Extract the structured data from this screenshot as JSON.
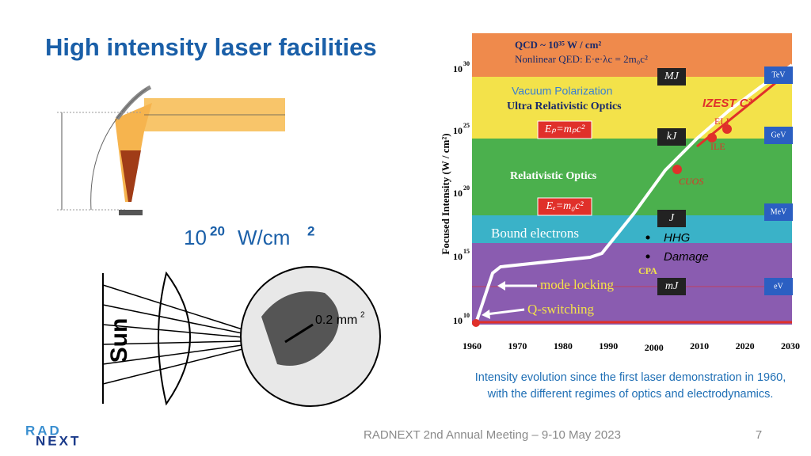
{
  "header": {
    "title": "High intensity laser facilities"
  },
  "left": {
    "intensity_base": "10",
    "intensity_exponent": "20",
    "intensity_unit": "W/cm",
    "intensity_unit_exponent": "2",
    "sun_label": "Sun",
    "area_label": "0.2 mm",
    "area_exponent": "2"
  },
  "figure": {
    "qcd": "QCD ~ 10³⁵ W / cm²",
    "qed": "Nonlinear QED: E·e·λc = 2m₀c²",
    "vacuum": "Vacuum Polarization",
    "ultra": "Ultra Relativistic Optics",
    "izest": "IZEST   C³",
    "eli": "ELI",
    "ile": "ILE",
    "cuos": "CUOS",
    "relativistic": "Relativistic Optics",
    "ep": "Eₚ=mₚc²",
    "ee": "Eₑ=m₀c²",
    "bound": "Bound electrons",
    "bullets": [
      "HHG",
      "Damage"
    ],
    "cpa": "CPA",
    "mode_locking": "mode locking",
    "q_switching": "Q-switching",
    "energies": [
      "MJ",
      "kJ",
      "J",
      "mJ"
    ],
    "particle_energies": [
      "TeV",
      "GeV",
      "MeV",
      "eV"
    ],
    "y_axis_label": "Focused Intensity (W / cm²)",
    "yticks": [
      {
        "base": "10",
        "exponent": "30"
      },
      {
        "base": "10",
        "exponent": "25"
      },
      {
        "base": "10",
        "exponent": "20"
      },
      {
        "base": "10",
        "exponent": "15"
      },
      {
        "base": "10",
        "exponent": "10"
      }
    ],
    "xticks": [
      "1960",
      "1970",
      "1980",
      "1990",
      "2000",
      "2010",
      "2020",
      "2030"
    ]
  },
  "caption": "Intensity evolution since the first laser demonstration in 1960, with the different regimes of optics and electrodynamics.",
  "footer": {
    "logo_top": "RAD",
    "logo_bottom": "NEXT",
    "event": "RADNEXT 2nd Annual Meeting – 9-10 May 2023",
    "page": "7"
  }
}
